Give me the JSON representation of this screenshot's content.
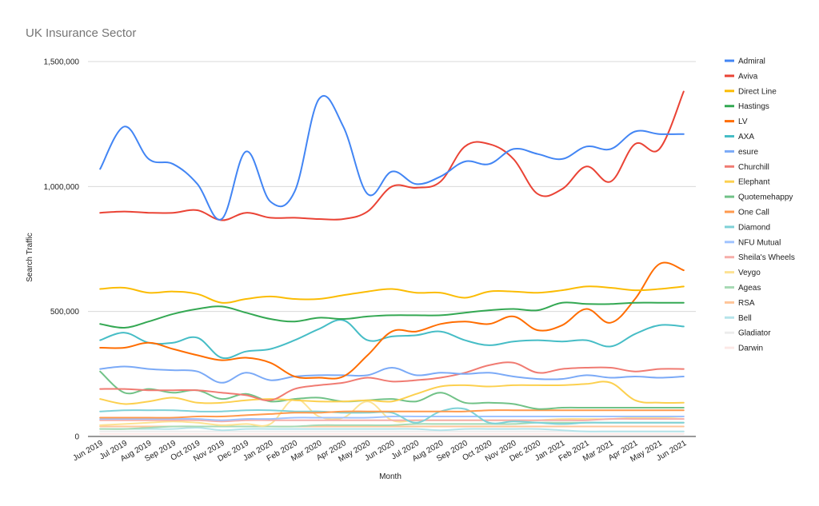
{
  "chart_data": {
    "type": "line",
    "title": "UK Insurance Sector",
    "xlabel": "Month",
    "ylabel": "Search Traffic",
    "ylim": [
      0,
      1500000
    ],
    "yticks": [
      0,
      500000,
      1000000,
      1500000
    ],
    "ytick_labels": [
      "0",
      "500,000",
      "1,000,000",
      "1,500,000"
    ],
    "grid": true,
    "legend_position": "right",
    "categories": [
      "Jun 2019",
      "Jul 2019",
      "Aug 2019",
      "Sep 2019",
      "Oct 2019",
      "Nov 2019",
      "Dec 2019",
      "Jan 2020",
      "Feb 2020",
      "Mar 2020",
      "Apr 2020",
      "May 2020",
      "Jun 2020",
      "Jul 2020",
      "Aug 2020",
      "Sep 2020",
      "Oct 2020",
      "Nov 2020",
      "Dec 2020",
      "Jan 2021",
      "Feb 2021",
      "Mar 2021",
      "Apr 2021",
      "May 2021",
      "Jun 2021"
    ],
    "series": [
      {
        "name": "Admiral",
        "color": "#4285f4",
        "values": [
          1070000,
          1240000,
          1110000,
          1090000,
          1010000,
          870000,
          1140000,
          940000,
          980000,
          1350000,
          1240000,
          970000,
          1060000,
          1010000,
          1040000,
          1100000,
          1090000,
          1150000,
          1130000,
          1110000,
          1160000,
          1150000,
          1220000,
          1210000,
          1210000
        ]
      },
      {
        "name": "Aviva",
        "color": "#ea4335",
        "values": [
          895000,
          900000,
          895000,
          895000,
          905000,
          865000,
          895000,
          875000,
          875000,
          870000,
          870000,
          900000,
          1000000,
          995000,
          1020000,
          1160000,
          1170000,
          1110000,
          970000,
          990000,
          1080000,
          1020000,
          1170000,
          1150000,
          1380000
        ]
      },
      {
        "name": "Direct Line",
        "color": "#fbbc04",
        "values": [
          590000,
          595000,
          575000,
          580000,
          570000,
          535000,
          550000,
          560000,
          550000,
          550000,
          565000,
          580000,
          590000,
          575000,
          575000,
          555000,
          580000,
          580000,
          575000,
          585000,
          600000,
          595000,
          585000,
          590000,
          600000
        ]
      },
      {
        "name": "Hastings",
        "color": "#34a853",
        "values": [
          450000,
          435000,
          460000,
          490000,
          510000,
          520000,
          495000,
          470000,
          460000,
          475000,
          470000,
          480000,
          485000,
          485000,
          485000,
          495000,
          505000,
          510000,
          505000,
          535000,
          530000,
          530000,
          535000,
          535000,
          535000
        ]
      },
      {
        "name": "LV",
        "color": "#ff6d01",
        "values": [
          355000,
          355000,
          375000,
          350000,
          325000,
          305000,
          315000,
          295000,
          240000,
          235000,
          240000,
          325000,
          420000,
          420000,
          450000,
          460000,
          450000,
          480000,
          425000,
          445000,
          510000,
          455000,
          550000,
          690000,
          665000
        ]
      },
      {
        "name": "AXA",
        "color": "#46bdc6",
        "values": [
          385000,
          415000,
          375000,
          375000,
          395000,
          315000,
          340000,
          350000,
          385000,
          430000,
          465000,
          385000,
          400000,
          405000,
          420000,
          385000,
          365000,
          380000,
          385000,
          380000,
          385000,
          360000,
          410000,
          445000,
          440000
        ]
      },
      {
        "name": "esure",
        "color": "#7baaf7",
        "values": [
          270000,
          280000,
          270000,
          265000,
          260000,
          215000,
          255000,
          225000,
          240000,
          245000,
          245000,
          245000,
          275000,
          245000,
          255000,
          250000,
          255000,
          240000,
          230000,
          230000,
          245000,
          235000,
          240000,
          235000,
          240000
        ]
      },
      {
        "name": "Churchill",
        "color": "#f07b72",
        "values": [
          190000,
          190000,
          185000,
          185000,
          185000,
          175000,
          165000,
          145000,
          190000,
          205000,
          215000,
          235000,
          220000,
          225000,
          235000,
          255000,
          285000,
          295000,
          255000,
          270000,
          275000,
          275000,
          260000,
          270000,
          270000
        ]
      },
      {
        "name": "Elephant",
        "color": "#fcd04f",
        "values": [
          150000,
          130000,
          140000,
          155000,
          135000,
          135000,
          145000,
          150000,
          145000,
          140000,
          140000,
          145000,
          140000,
          170000,
          200000,
          205000,
          200000,
          205000,
          205000,
          205000,
          210000,
          215000,
          145000,
          135000,
          135000
        ]
      },
      {
        "name": "Quotemehappy",
        "color": "#71c287",
        "values": [
          260000,
          175000,
          190000,
          175000,
          185000,
          150000,
          170000,
          140000,
          150000,
          155000,
          140000,
          145000,
          150000,
          140000,
          175000,
          135000,
          135000,
          130000,
          110000,
          115000,
          115000,
          115000,
          115000,
          115000,
          115000
        ]
      },
      {
        "name": "One Call",
        "color": "#ff994d",
        "values": [
          75000,
          75000,
          75000,
          75000,
          80000,
          80000,
          85000,
          90000,
          95000,
          95000,
          100000,
          100000,
          100000,
          100000,
          100000,
          100000,
          105000,
          105000,
          105000,
          105000,
          105000,
          105000,
          105000,
          105000,
          105000
        ]
      },
      {
        "name": "Diamond",
        "color": "#7ed1d7",
        "values": [
          100000,
          105000,
          105000,
          105000,
          100000,
          100000,
          105000,
          105000,
          100000,
          100000,
          95000,
          95000,
          95000,
          55000,
          100000,
          110000,
          55000,
          60000,
          55000,
          50000,
          55000,
          55000,
          55000,
          55000,
          55000
        ]
      },
      {
        "name": "NFU Mutual",
        "color": "#a0c3ff",
        "values": [
          70000,
          70000,
          70000,
          70000,
          70000,
          65000,
          70000,
          70000,
          75000,
          75000,
          75000,
          75000,
          80000,
          80000,
          80000,
          80000,
          80000,
          80000,
          80000,
          80000,
          80000,
          80000,
          80000,
          80000,
          80000
        ]
      },
      {
        "name": "Sheila's Wheels",
        "color": "#f6aea9",
        "values": [
          65000,
          65000,
          65000,
          65000,
          65000,
          60000,
          65000,
          65000,
          65000,
          65000,
          65000,
          65000,
          65000,
          65000,
          65000,
          65000,
          65000,
          65000,
          65000,
          65000,
          65000,
          70000,
          70000,
          70000,
          70000
        ]
      },
      {
        "name": "Veygo",
        "color": "#fde293",
        "values": [
          45000,
          50000,
          55000,
          60000,
          55000,
          45000,
          50000,
          50000,
          150000,
          80000,
          75000,
          140000,
          65000,
          65000,
          65000,
          65000,
          65000,
          65000,
          65000,
          70000,
          70000,
          70000,
          75000,
          75000,
          80000
        ]
      },
      {
        "name": "Ageas",
        "color": "#a8dab5",
        "values": [
          30000,
          30000,
          35000,
          40000,
          40000,
          40000,
          40000,
          40000,
          40000,
          45000,
          45000,
          45000,
          45000,
          50000,
          50000,
          50000,
          50000,
          50000,
          55000,
          55000,
          55000,
          55000,
          55000,
          55000,
          55000
        ]
      },
      {
        "name": "RSA",
        "color": "#ffc599",
        "values": [
          40000,
          40000,
          40000,
          40000,
          40000,
          40000,
          40000,
          40000,
          40000,
          40000,
          40000,
          40000,
          40000,
          40000,
          40000,
          40000,
          40000,
          40000,
          40000,
          40000,
          40000,
          40000,
          40000,
          40000,
          40000
        ]
      },
      {
        "name": "Bell",
        "color": "#b5e4ea",
        "values": [
          30000,
          30000,
          30000,
          30000,
          35000,
          25000,
          30000,
          30000,
          30000,
          30000,
          30000,
          30000,
          30000,
          30000,
          25000,
          30000,
          30000,
          30000,
          30000,
          25000,
          20000,
          20000,
          20000,
          20000,
          20000
        ]
      },
      {
        "name": "Gladiator",
        "color": "#ececec",
        "values": [
          20000,
          20000,
          20000,
          20000,
          20000,
          20000,
          20000,
          20000,
          20000,
          20000,
          20000,
          20000,
          20000,
          20000,
          20000,
          20000,
          20000,
          20000,
          20000,
          20000,
          20000,
          20000,
          20000,
          20000,
          20000
        ]
      },
      {
        "name": "Darwin",
        "color": "#fce8e6",
        "values": [
          10000,
          10000,
          10000,
          10000,
          10000,
          10000,
          10000,
          10000,
          10000,
          10000,
          10000,
          10000,
          10000,
          10000,
          10000,
          10000,
          10000,
          10000,
          10000,
          10000,
          10000,
          10000,
          10000,
          10000,
          10000
        ]
      }
    ]
  }
}
